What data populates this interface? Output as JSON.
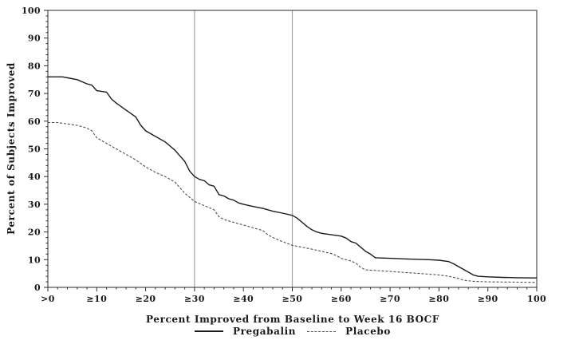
{
  "chart_data": {
    "type": "line",
    "title": "",
    "xlabel": "Percent Improved from Baseline to Week 16 BOCF",
    "ylabel": "Percent of Subjects Improved",
    "xlim": [
      0,
      100
    ],
    "ylim": [
      0,
      100
    ],
    "grid": false,
    "legend_position": "bottom",
    "x_tick_values": [
      0,
      10,
      20,
      30,
      40,
      50,
      60,
      70,
      80,
      90,
      100
    ],
    "x_tick_labels": [
      ">0",
      "≥10",
      "≥20",
      "≥30",
      "≥40",
      "≥50",
      "≥60",
      "≥70",
      "≥80",
      "≥90",
      "100"
    ],
    "y_ticks": [
      0,
      10,
      20,
      30,
      40,
      50,
      60,
      70,
      80,
      90,
      100
    ],
    "minor_tick_step": 2,
    "reference_lines_x": [
      30,
      50
    ],
    "series": [
      {
        "name": "Pregabalin",
        "style": "solid",
        "color": "#1a1a1a",
        "width": 1.4,
        "points": [
          [
            0,
            76
          ],
          [
            3,
            76
          ],
          [
            4.5,
            75.5
          ],
          [
            6,
            75
          ],
          [
            8,
            73.5
          ],
          [
            9,
            73
          ],
          [
            10,
            71
          ],
          [
            12,
            70.5
          ],
          [
            13,
            68
          ],
          [
            14,
            66.5
          ],
          [
            16,
            64
          ],
          [
            18,
            61.5
          ],
          [
            19,
            58.5
          ],
          [
            20,
            56.5
          ],
          [
            22,
            54.5
          ],
          [
            24,
            52.5
          ],
          [
            25,
            51
          ],
          [
            26,
            49.5
          ],
          [
            27,
            47.5
          ],
          [
            28,
            45.5
          ],
          [
            29,
            42
          ],
          [
            30,
            40
          ],
          [
            31,
            39
          ],
          [
            32,
            38.5
          ],
          [
            33,
            37
          ],
          [
            34,
            36.5
          ],
          [
            35,
            33.5
          ],
          [
            36,
            33
          ],
          [
            37,
            32
          ],
          [
            38,
            31.5
          ],
          [
            39,
            30.5
          ],
          [
            40,
            30
          ],
          [
            42,
            29.2
          ],
          [
            44,
            28.5
          ],
          [
            46,
            27.5
          ],
          [
            48,
            26.8
          ],
          [
            50,
            26
          ],
          [
            51,
            25
          ],
          [
            52,
            23.5
          ],
          [
            53,
            22
          ],
          [
            54,
            20.8
          ],
          [
            55,
            20
          ],
          [
            56,
            19.5
          ],
          [
            58,
            19
          ],
          [
            60,
            18.5
          ],
          [
            61,
            17.8
          ],
          [
            62,
            16.5
          ],
          [
            63,
            16
          ],
          [
            64,
            14.5
          ],
          [
            65,
            13
          ],
          [
            66,
            12
          ],
          [
            67,
            10.7
          ],
          [
            70,
            10.5
          ],
          [
            74,
            10.2
          ],
          [
            78,
            10
          ],
          [
            80,
            9.8
          ],
          [
            82,
            9.3
          ],
          [
            83,
            8.5
          ],
          [
            84,
            7.5
          ],
          [
            85,
            6.5
          ],
          [
            86,
            5.5
          ],
          [
            87,
            4.5
          ],
          [
            88,
            4
          ],
          [
            90,
            3.8
          ],
          [
            93,
            3.6
          ],
          [
            96,
            3.5
          ],
          [
            100,
            3.4
          ]
        ]
      },
      {
        "name": "Placebo",
        "style": "dashed",
        "color": "#4d4d4d",
        "width": 1.1,
        "points": [
          [
            0,
            59.5
          ],
          [
            2,
            59.5
          ],
          [
            4,
            59
          ],
          [
            6,
            58.5
          ],
          [
            8,
            57.5
          ],
          [
            9,
            56.5
          ],
          [
            10,
            54
          ],
          [
            11,
            53
          ],
          [
            12,
            52
          ],
          [
            14,
            50
          ],
          [
            16,
            48
          ],
          [
            18,
            46
          ],
          [
            20,
            43.5
          ],
          [
            22,
            41.5
          ],
          [
            24,
            40
          ],
          [
            26,
            38
          ],
          [
            27,
            36
          ],
          [
            28,
            34
          ],
          [
            29,
            32.5
          ],
          [
            30,
            31
          ],
          [
            32,
            29.5
          ],
          [
            34,
            28
          ],
          [
            35,
            25.5
          ],
          [
            36,
            24.5
          ],
          [
            38,
            23.5
          ],
          [
            40,
            22.5
          ],
          [
            42,
            21.5
          ],
          [
            44,
            20.5
          ],
          [
            45,
            19
          ],
          [
            46,
            18
          ],
          [
            48,
            16.5
          ],
          [
            50,
            15.2
          ],
          [
            52,
            14.5
          ],
          [
            54,
            13.8
          ],
          [
            56,
            13
          ],
          [
            58,
            12.2
          ],
          [
            59,
            11.5
          ],
          [
            60,
            10.5
          ],
          [
            62,
            9.5
          ],
          [
            63,
            8.8
          ],
          [
            64,
            7.2
          ],
          [
            65,
            6.3
          ],
          [
            68,
            6
          ],
          [
            72,
            5.5
          ],
          [
            76,
            5
          ],
          [
            80,
            4.5
          ],
          [
            82,
            4
          ],
          [
            84,
            3.2
          ],
          [
            85,
            2.6
          ],
          [
            87,
            2.2
          ],
          [
            90,
            2
          ],
          [
            95,
            1.9
          ],
          [
            100,
            1.8
          ]
        ]
      }
    ]
  },
  "colors": {
    "background": "#ffffff",
    "axis": "#2b2b2b",
    "reference_line": "#a3a3a3",
    "tick_text": "#1a1a1a"
  }
}
